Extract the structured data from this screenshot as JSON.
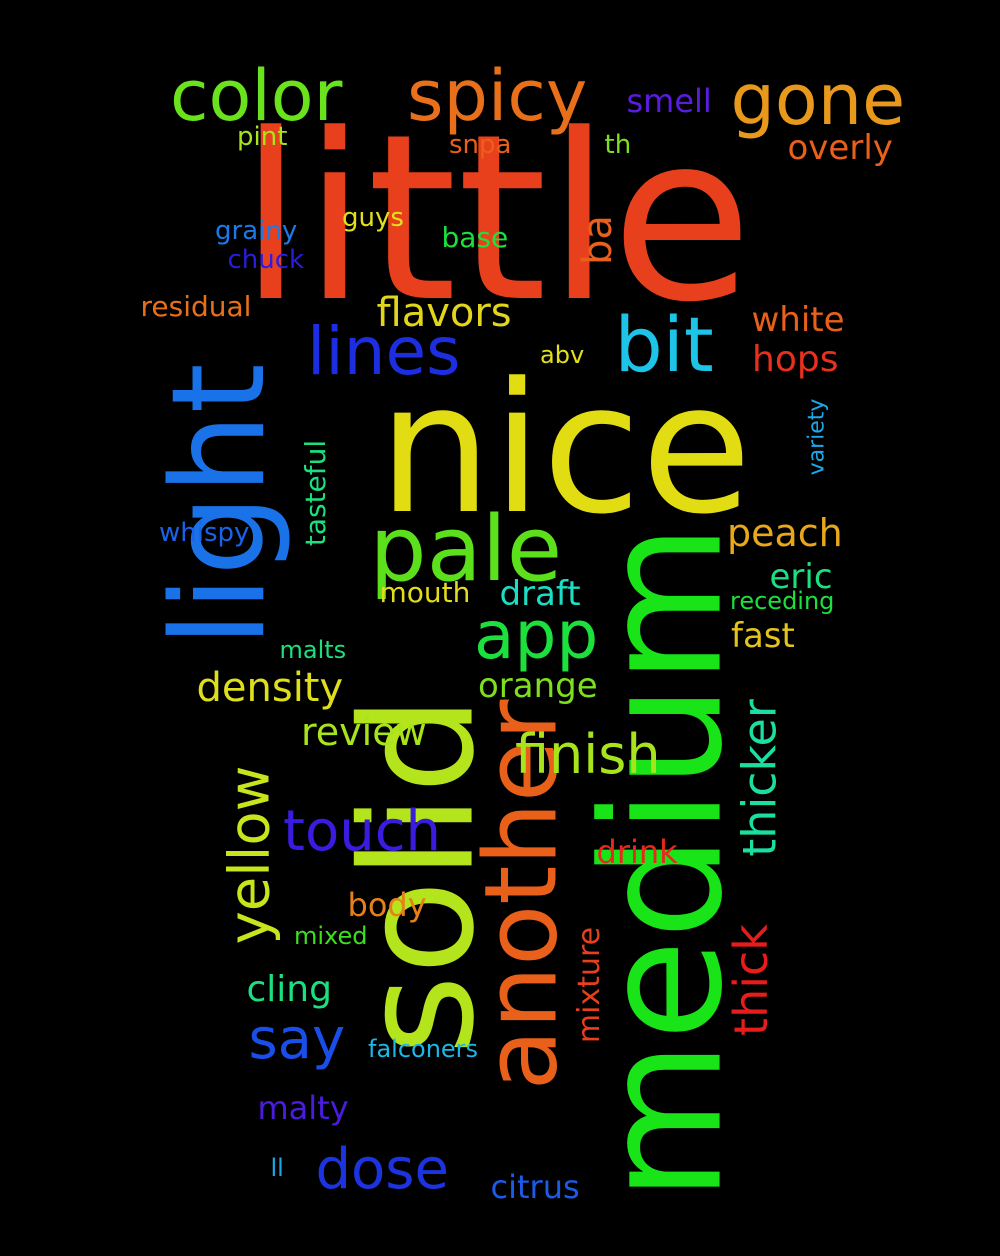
{
  "words": [
    {
      "text": "little",
      "color": "#e8401c"
    },
    {
      "text": "nice",
      "color": "#e2dc12"
    },
    {
      "text": "medium",
      "color": "#18e418"
    },
    {
      "text": "solid",
      "color": "#b4e41c"
    },
    {
      "text": "light",
      "color": "#1a72e8"
    },
    {
      "text": "another",
      "color": "#e8601a"
    },
    {
      "text": "pale",
      "color": "#5ce01c"
    },
    {
      "text": "color",
      "color": "#6ae21c"
    },
    {
      "text": "spicy",
      "color": "#e8701a"
    },
    {
      "text": "gone",
      "color": "#e8981a"
    },
    {
      "text": "bit",
      "color": "#1ec4e8"
    },
    {
      "text": "lines",
      "color": "#1c2ee0"
    },
    {
      "text": "app",
      "color": "#1ce03c"
    },
    {
      "text": "yellow",
      "color": "#c8e41c"
    },
    {
      "text": "finish",
      "color": "#a8e41c"
    },
    {
      "text": "touch",
      "color": "#3a1ce0"
    },
    {
      "text": "say",
      "color": "#1a4ee8"
    },
    {
      "text": "dose",
      "color": "#1c34e0"
    },
    {
      "text": "thicker",
      "color": "#1cdea0"
    },
    {
      "text": "thick",
      "color": "#e81c1c"
    },
    {
      "text": "density",
      "color": "#dede1c"
    },
    {
      "text": "review",
      "color": "#a8e41c"
    },
    {
      "text": "flavors",
      "color": "#e2d61c"
    },
    {
      "text": "smell",
      "color": "#5a1ce0"
    },
    {
      "text": "overly",
      "color": "#e8601a"
    },
    {
      "text": "ba",
      "color": "#e8601a"
    },
    {
      "text": "white",
      "color": "#e8601a"
    },
    {
      "text": "hops",
      "color": "#e8301c"
    },
    {
      "text": "peach",
      "color": "#e8a81a"
    },
    {
      "text": "eric",
      "color": "#1ce07e"
    },
    {
      "text": "fast",
      "color": "#e2c41c"
    },
    {
      "text": "orange",
      "color": "#7ee01c"
    },
    {
      "text": "draft",
      "color": "#1cdec4"
    },
    {
      "text": "mouth",
      "color": "#e2dc1c"
    },
    {
      "text": "tasteful",
      "color": "#1ce07e"
    },
    {
      "text": "cling",
      "color": "#1ce07e"
    },
    {
      "text": "body",
      "color": "#e8801a"
    },
    {
      "text": "drink",
      "color": "#e8281c"
    },
    {
      "text": "mixture",
      "color": "#e8401c"
    },
    {
      "text": "malty",
      "color": "#4a1ce0"
    },
    {
      "text": "citrus",
      "color": "#1c5ae8"
    },
    {
      "text": "residual",
      "color": "#e8701a"
    },
    {
      "text": "base",
      "color": "#1ce03c"
    },
    {
      "text": "grainy",
      "color": "#1a7ae8"
    },
    {
      "text": "chuck",
      "color": "#2a1ce0"
    },
    {
      "text": "guys",
      "color": "#e2e01c"
    },
    {
      "text": "pint",
      "color": "#a8e41c"
    },
    {
      "text": "snpa",
      "color": "#e8601a"
    },
    {
      "text": "th",
      "color": "#7ee01c"
    },
    {
      "text": "abv",
      "color": "#e2e01c"
    },
    {
      "text": "variety",
      "color": "#1ca8e8"
    },
    {
      "text": "whispy",
      "color": "#1a62e8"
    },
    {
      "text": "receding",
      "color": "#1ce03c"
    },
    {
      "text": "malts",
      "color": "#1ce07e"
    },
    {
      "text": "mixed",
      "color": "#3ce01c"
    },
    {
      "text": "falconers",
      "color": "#1cb8e8"
    },
    {
      "text": "ll",
      "color": "#1ca8e8"
    }
  ]
}
